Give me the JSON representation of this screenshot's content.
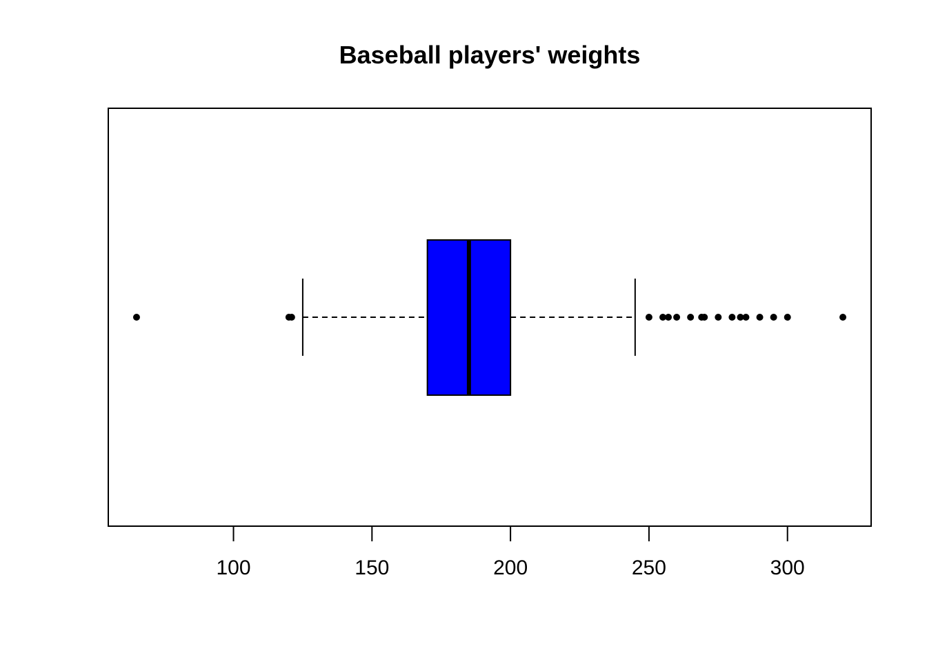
{
  "chart_data": {
    "type": "boxplot",
    "orientation": "horizontal",
    "title": "Baseball players' weights",
    "xlabel": "",
    "ylabel": "",
    "xlim": [
      54.8,
      330.2
    ],
    "x_ticks": [
      100,
      150,
      200,
      250,
      300
    ],
    "box": {
      "whisker_low": 125,
      "q1": 170,
      "median": 185,
      "q3": 200,
      "whisker_high": 245,
      "fill_color": "#0000ff"
    },
    "outliers": [
      65,
      120,
      121,
      250,
      255,
      257,
      260,
      265,
      269,
      270,
      275,
      280,
      283,
      285,
      290,
      295,
      300,
      320
    ],
    "grid": false,
    "legend": "none"
  }
}
